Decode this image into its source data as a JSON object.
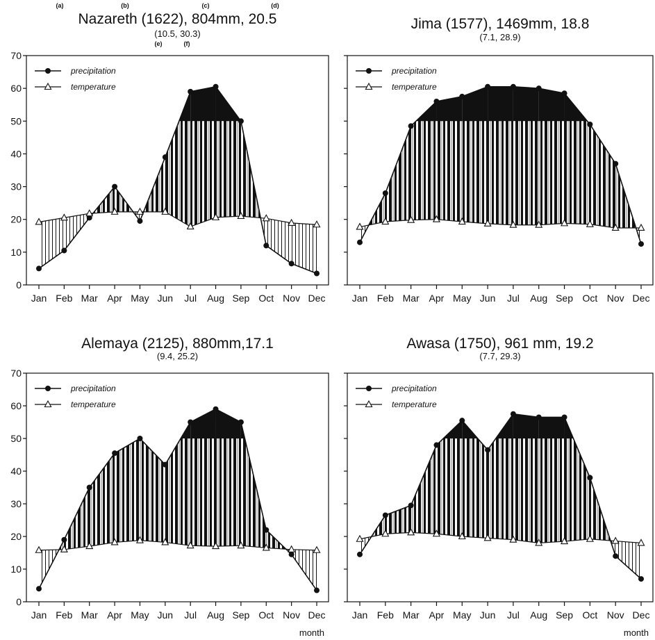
{
  "x_axis_name": "month",
  "legend_labels": {
    "precipitation": "precipitation",
    "temperature": "temperature"
  },
  "colors": {
    "ink": "#111111",
    "background": "#ffffff",
    "stripe_light": "#bdbdbd"
  },
  "chart_data": [
    {
      "type": "line",
      "title": "Nazareth (1622), 804mm, 20.5",
      "subtitle": "(10.5, 30.3)",
      "title_letters": [
        "(a)",
        "(b)",
        "(c)",
        "(d)"
      ],
      "subtitle_letters": [
        "(e)",
        "(f)"
      ],
      "categories": [
        "Jan",
        "Feb",
        "Mar",
        "Apr",
        "May",
        "Jun",
        "Jul",
        "Aug",
        "Sep",
        "Oct",
        "Nov",
        "Dec"
      ],
      "ylim": [
        0,
        70
      ],
      "yticks": [
        0,
        10,
        20,
        30,
        40,
        50,
        60,
        70
      ],
      "grid": false,
      "legend_position": "top-left",
      "show_xlabel": false,
      "series": [
        {
          "name": "precipitation",
          "marker": "filled-circle",
          "values": [
            5,
            10.5,
            20.5,
            30,
            19.5,
            39,
            59,
            60.5,
            50,
            12,
            6.5,
            3.5
          ]
        },
        {
          "name": "temperature",
          "marker": "open-triangle",
          "values": [
            19.2,
            20.5,
            21.8,
            22.3,
            22.3,
            22.3,
            17.8,
            20.6,
            21,
            20.3,
            18.9,
            18.4
          ]
        }
      ]
    },
    {
      "type": "line",
      "title": "Jima (1577), 1469mm, 18.8",
      "subtitle": "(7.1, 28.9)",
      "title_letters": [],
      "subtitle_letters": [],
      "categories": [
        "Jan",
        "Feb",
        "Mar",
        "Apr",
        "May",
        "Jun",
        "Jul",
        "Aug",
        "Sep",
        "Oct",
        "Nov",
        "Dec"
      ],
      "ylim": [
        0,
        70
      ],
      "yticks": [
        0,
        10,
        20,
        30,
        40,
        50,
        60,
        70
      ],
      "grid": false,
      "legend_position": "top-left",
      "show_xlabel": false,
      "series": [
        {
          "name": "precipitation",
          "marker": "filled-circle",
          "values": [
            13,
            28,
            48.5,
            56,
            57.5,
            60.5,
            60.5,
            60,
            58.5,
            49,
            37,
            12.5
          ]
        },
        {
          "name": "temperature",
          "marker": "open-triangle",
          "values": [
            17.7,
            19.3,
            19.8,
            20,
            19.3,
            18.7,
            18.3,
            18.3,
            18.8,
            18.5,
            17.4,
            17.4
          ]
        }
      ]
    },
    {
      "type": "line",
      "title": "Alemaya (2125), 880mm,17.1",
      "subtitle": "(9.4, 25.2)",
      "title_letters": [],
      "subtitle_letters": [],
      "categories": [
        "Jan",
        "Feb",
        "Mar",
        "Apr",
        "May",
        "Jun",
        "Jul",
        "Aug",
        "Sep",
        "Oct",
        "Nov",
        "Dec"
      ],
      "ylim": [
        0,
        70
      ],
      "yticks": [
        0,
        10,
        20,
        30,
        40,
        50,
        60,
        70
      ],
      "grid": false,
      "legend_position": "top-left",
      "show_xlabel": true,
      "series": [
        {
          "name": "precipitation",
          "marker": "filled-circle",
          "values": [
            4,
            19,
            35,
            45.5,
            50,
            42,
            55,
            59,
            55,
            22,
            14.5,
            3.5
          ]
        },
        {
          "name": "temperature",
          "marker": "open-triangle",
          "values": [
            15.8,
            16,
            17,
            18.2,
            18.8,
            18.2,
            17.2,
            17,
            17.2,
            16.5,
            16,
            15.8
          ]
        }
      ]
    },
    {
      "type": "line",
      "title": "Awasa (1750), 961 mm, 19.2",
      "subtitle": "(7.7, 29.3)",
      "title_letters": [],
      "subtitle_letters": [],
      "categories": [
        "Jan",
        "Feb",
        "Mar",
        "Apr",
        "May",
        "Jun",
        "Jul",
        "Aug",
        "Sep",
        "Oct",
        "Nov",
        "Dec"
      ],
      "ylim": [
        0,
        70
      ],
      "yticks": [
        0,
        10,
        20,
        30,
        40,
        50,
        60,
        70
      ],
      "grid": false,
      "legend_position": "top-left",
      "show_xlabel": true,
      "series": [
        {
          "name": "precipitation",
          "marker": "filled-circle",
          "values": [
            14.5,
            26.5,
            29.5,
            48,
            55.5,
            46.5,
            57.5,
            56.5,
            56.5,
            38,
            14,
            7
          ]
        },
        {
          "name": "temperature",
          "marker": "open-triangle",
          "values": [
            19.2,
            20.8,
            21.2,
            20.8,
            20,
            19.5,
            19,
            18,
            18.5,
            19.2,
            18.6,
            18
          ]
        }
      ]
    }
  ]
}
